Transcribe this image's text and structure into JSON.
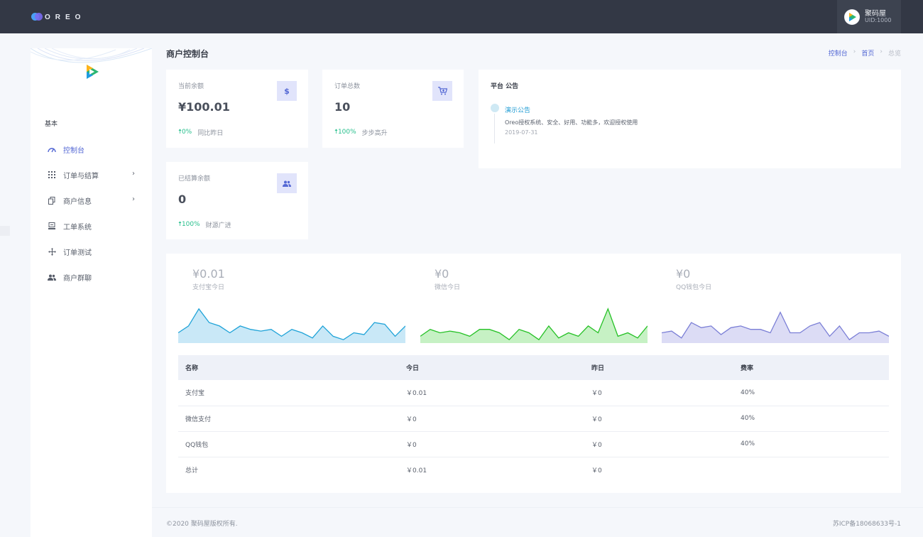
{
  "header": {
    "logo_text": "OREO",
    "user_name": "聚码屋",
    "user_uid": "UID:1000"
  },
  "sidebar": {
    "section_label": "基本",
    "items": [
      {
        "label": "控制台",
        "icon": "dashboard-icon",
        "active": true
      },
      {
        "label": "订单与结算",
        "icon": "grid-icon",
        "has_submenu": true
      },
      {
        "label": "商户信息",
        "icon": "copy-icon",
        "has_submenu": true
      },
      {
        "label": "工单系统",
        "icon": "ticket-icon"
      },
      {
        "label": "订单测试",
        "icon": "move-icon"
      },
      {
        "label": "商户群聊",
        "icon": "group-icon"
      }
    ],
    "chevron": "›"
  },
  "page": {
    "title": "商户控制台",
    "breadcrumb": [
      "控制台",
      "首页",
      "总览"
    ],
    "breadcrumb_sep": "›"
  },
  "stats": [
    {
      "label": "当前余额",
      "value": "¥100.01",
      "trend": "0%",
      "trend_text": "同比昨日",
      "icon": "dollar-icon",
      "icon_glyph": "$"
    },
    {
      "label": "订单总数",
      "value": "10",
      "trend": "100%",
      "trend_text": "步步高升",
      "icon": "cart-icon",
      "icon_glyph": "🛒"
    },
    {
      "label": "已结算余额",
      "value": "0",
      "trend": "100%",
      "trend_text": "财源广进",
      "icon": "people-icon",
      "icon_glyph": "👥"
    }
  ],
  "notice": {
    "title": "平台 公告",
    "heading": "演示公告",
    "body": "Oreo授权系统、安全、好用、功能多，欢迎授权使用",
    "date": "2019-07-31"
  },
  "chart_data": [
    {
      "type": "area",
      "title": "¥0.01",
      "subtitle": "支付宝今日",
      "color": "#1fa3d8",
      "fill": "#c9e8f7",
      "values": [
        3,
        5,
        10,
        6,
        5,
        3,
        5,
        4,
        3.5,
        4,
        2,
        4,
        3,
        1.5,
        5,
        2,
        1,
        3,
        2.5,
        6,
        5.5,
        2,
        5
      ]
    },
    {
      "type": "area",
      "title": "¥0",
      "subtitle": "微信今日",
      "color": "#26c126",
      "fill": "#c6f1c4",
      "values": [
        2,
        4,
        3,
        3.5,
        3,
        2,
        4,
        4,
        3,
        1,
        4,
        3,
        1,
        5,
        1.5,
        3,
        2,
        5,
        3,
        10,
        2,
        3,
        1.5,
        5
      ]
    },
    {
      "type": "area",
      "title": "¥0",
      "subtitle": "QQ钱包今日",
      "color": "#7b7fd6",
      "fill": "#dcdcf5",
      "values": [
        3,
        3.5,
        1.5,
        6,
        4.5,
        5,
        2.5,
        4.5,
        5,
        4,
        4,
        3,
        9,
        3,
        3,
        5,
        6,
        2,
        5,
        1,
        3,
        3,
        3.5,
        2
      ]
    }
  ],
  "table": {
    "headers": [
      "名称",
      "今日",
      "昨日",
      "费率"
    ],
    "rows": [
      [
        "支付宝",
        "￥0.01",
        "￥0",
        "40%"
      ],
      [
        "微信支付",
        "￥0",
        "￥0",
        "40%"
      ],
      [
        "QQ钱包",
        "￥0",
        "￥0",
        "40%"
      ],
      [
        "总计",
        "￥0.01",
        "￥0",
        ""
      ]
    ]
  },
  "footer": {
    "copyright": "©2020 聚码屋版权所有.",
    "icp": "苏ICP备18068633号-1"
  }
}
